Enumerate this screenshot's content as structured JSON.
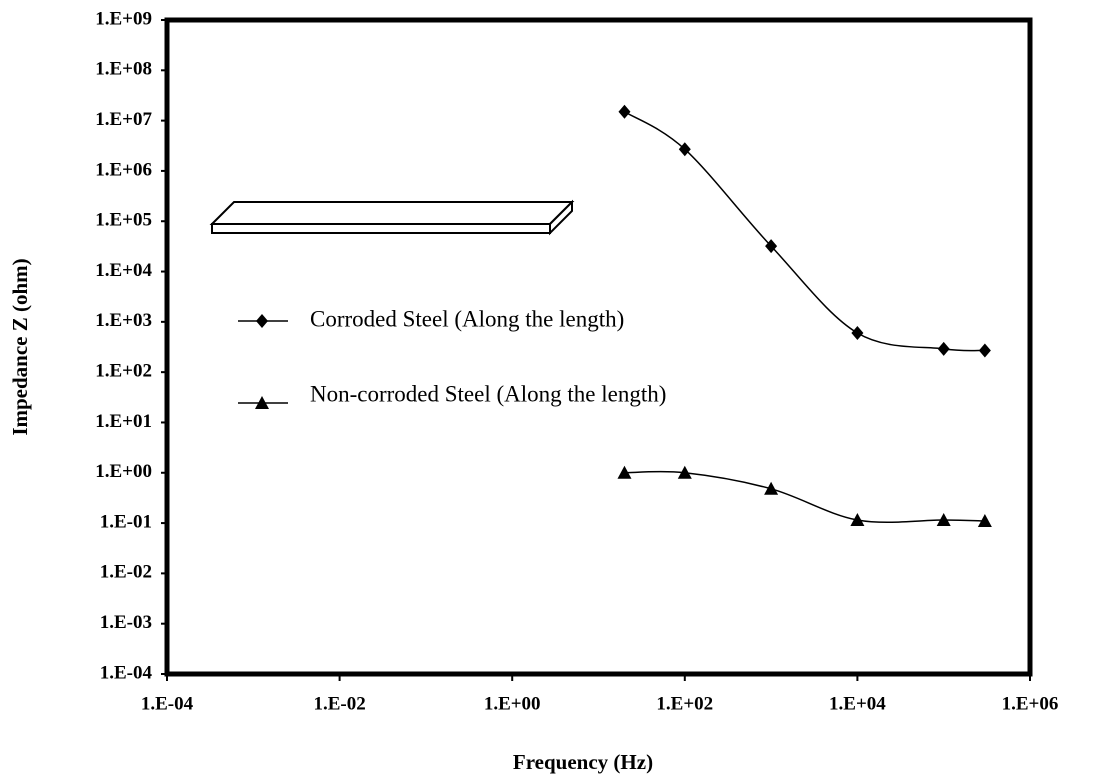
{
  "chart_data": {
    "type": "line",
    "x_label": "Frequency (Hz)",
    "y_label": "Impedance  Z (ohm)",
    "log_x": true,
    "log_y": true,
    "smooth": true,
    "xlim": [
      0.0001,
      1000000
    ],
    "xticks": [
      {
        "value": 0.0001,
        "label": "1.E-04"
      },
      {
        "value": 0.01,
        "label": "1.E-02"
      },
      {
        "value": 1,
        "label": "1.E+00"
      },
      {
        "value": 100,
        "label": "1.E+02"
      },
      {
        "value": 10000,
        "label": "1.E+04"
      },
      {
        "value": 1000000,
        "label": "1.E+06"
      }
    ],
    "ylim": [
      0.0001,
      1000000000
    ],
    "yticks": [
      {
        "value": 0.0001,
        "label": "1.E-04"
      },
      {
        "value": 0.001,
        "label": "1.E-03"
      },
      {
        "value": 0.01,
        "label": "1.E-02"
      },
      {
        "value": 0.1,
        "label": "1.E-01"
      },
      {
        "value": 1,
        "label": "1.E+00"
      },
      {
        "value": 10,
        "label": "1.E+01"
      },
      {
        "value": 100,
        "label": "1.E+02"
      },
      {
        "value": 1000,
        "label": "1.E+03"
      },
      {
        "value": 10000,
        "label": "1.E+04"
      },
      {
        "value": 100000,
        "label": "1.E+05"
      },
      {
        "value": 1000000,
        "label": "1.E+06"
      },
      {
        "value": 10000000,
        "label": "1.E+07"
      },
      {
        "value": 100000000,
        "label": "1.E+08"
      },
      {
        "value": 1000000000,
        "label": "1.E+09"
      }
    ],
    "series": [
      {
        "name": "Corroded Steel (Along the length)",
        "color": "#000000",
        "marker": "diamond",
        "x": [
          20,
          100,
          1000,
          10000,
          100000,
          300000
        ],
        "values": [
          15000000,
          2700000,
          32000,
          600,
          290,
          270
        ]
      },
      {
        "name": "Non-corroded Steel (Along the length)",
        "color": "#000000",
        "marker": "triangle",
        "x": [
          20,
          100,
          1000,
          10000,
          100000,
          300000
        ],
        "values": [
          1.0,
          1.0,
          0.48,
          0.115,
          0.115,
          0.11
        ]
      }
    ]
  }
}
